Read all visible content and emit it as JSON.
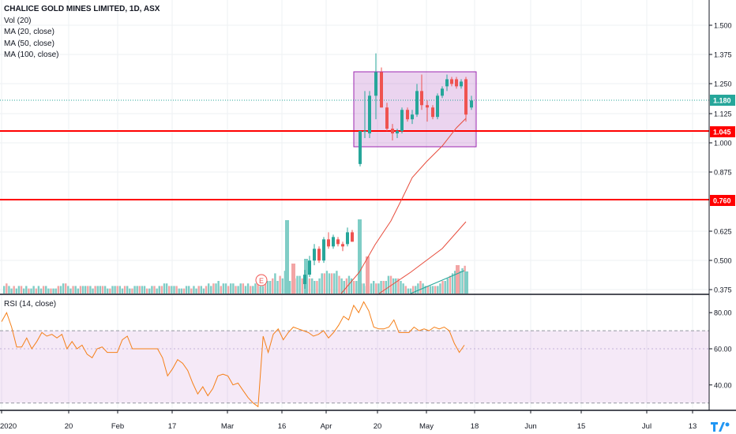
{
  "legend": {
    "title": "CHALICE GOLD MINES LIMITED, 1D, ASX",
    "lines": [
      "Vol (20)",
      "MA (20, close)",
      "MA (50, close)",
      "MA (100, close)"
    ]
  },
  "rsi": {
    "label": "RSI (14, close)",
    "ticks": [
      "80.00",
      "60.00",
      "40.00"
    ],
    "band": [
      30,
      70
    ],
    "values": [
      75,
      80,
      72,
      61,
      61,
      66,
      60,
      64,
      69,
      67,
      68,
      66,
      68,
      60,
      64,
      60,
      62,
      57,
      55,
      60,
      61,
      58,
      58,
      58,
      65,
      67,
      60,
      60,
      60,
      60,
      60,
      60,
      55,
      45,
      49,
      54,
      52,
      48,
      41,
      35,
      39,
      34,
      38,
      45,
      46,
      45,
      40,
      41,
      37,
      33,
      30,
      28,
      67,
      58,
      68,
      71,
      65,
      69,
      72,
      71,
      70,
      69,
      67,
      68,
      70,
      66,
      69,
      73,
      78,
      76,
      84,
      80,
      86,
      81,
      72,
      71,
      71,
      72,
      76,
      69,
      69,
      69,
      72,
      70,
      71,
      70,
      72,
      71,
      72,
      70,
      63,
      58,
      62
    ],
    "line_color": "#f57f17",
    "band_color": "#9c27b0"
  },
  "price_axis": {
    "ticks": [
      "1.500",
      "1.375",
      "1.250",
      "1.125",
      "1.000",
      "0.875",
      "0.625",
      "0.500",
      "0.375"
    ],
    "current_price": {
      "label": "1.180",
      "color": "#26a69a"
    },
    "levels": [
      {
        "label": "1.045",
        "color": "#ff0000"
      },
      {
        "label": "0.760",
        "color": "#ff0000"
      }
    ]
  },
  "time_axis": {
    "ticks": [
      "2020",
      "20",
      "Feb",
      "17",
      "Mar",
      "16",
      "Apr",
      "20",
      "May",
      "18",
      "Jun",
      "15",
      "Jul",
      "13"
    ]
  },
  "chart_data": {
    "type": "candlestick",
    "ylim": [
      0.375,
      1.55
    ],
    "series": [
      {
        "name": "price",
        "type": "candlestick",
        "candles": [
          {
            "o": 0.4,
            "h": 0.46,
            "l": 0.38,
            "c": 0.44
          },
          {
            "o": 0.44,
            "h": 0.52,
            "l": 0.43,
            "c": 0.5
          },
          {
            "o": 0.5,
            "h": 0.57,
            "l": 0.48,
            "c": 0.55
          },
          {
            "o": 0.55,
            "h": 0.56,
            "l": 0.49,
            "c": 0.5
          },
          {
            "o": 0.5,
            "h": 0.6,
            "l": 0.49,
            "c": 0.59
          },
          {
            "o": 0.59,
            "h": 0.62,
            "l": 0.55,
            "c": 0.56
          },
          {
            "o": 0.56,
            "h": 0.61,
            "l": 0.55,
            "c": 0.6
          },
          {
            "o": 0.59,
            "h": 0.6,
            "l": 0.56,
            "c": 0.57
          },
          {
            "o": 0.57,
            "h": 0.58,
            "l": 0.54,
            "c": 0.56
          },
          {
            "o": 0.57,
            "h": 0.64,
            "l": 0.56,
            "c": 0.62
          },
          {
            "o": 0.62,
            "h": 0.63,
            "l": 0.58,
            "c": 0.58
          },
          {
            "o": 0.91,
            "h": 1.05,
            "l": 0.9,
            "c": 1.05
          },
          {
            "o": 1.05,
            "h": 1.22,
            "l": 1.02,
            "c": 1.05
          },
          {
            "o": 1.04,
            "h": 1.22,
            "l": 1.02,
            "c": 1.2
          },
          {
            "o": 1.2,
            "h": 1.38,
            "l": 1.1,
            "c": 1.3
          },
          {
            "o": 1.3,
            "h": 1.32,
            "l": 1.15,
            "c": 1.15
          },
          {
            "o": 1.15,
            "h": 1.17,
            "l": 1.05,
            "c": 1.06
          },
          {
            "o": 1.06,
            "h": 1.08,
            "l": 1.01,
            "c": 1.04
          },
          {
            "o": 1.04,
            "h": 1.06,
            "l": 1.02,
            "c": 1.05
          },
          {
            "o": 1.05,
            "h": 1.15,
            "l": 1.04,
            "c": 1.14
          },
          {
            "o": 1.14,
            "h": 1.15,
            "l": 1.09,
            "c": 1.1
          },
          {
            "o": 1.1,
            "h": 1.14,
            "l": 1.08,
            "c": 1.12
          },
          {
            "o": 1.12,
            "h": 1.25,
            "l": 1.11,
            "c": 1.22
          },
          {
            "o": 1.22,
            "h": 1.29,
            "l": 1.14,
            "c": 1.16
          },
          {
            "o": 1.16,
            "h": 1.18,
            "l": 1.09,
            "c": 1.15
          },
          {
            "o": 1.15,
            "h": 1.16,
            "l": 1.1,
            "c": 1.11
          },
          {
            "o": 1.11,
            "h": 1.21,
            "l": 1.1,
            "c": 1.2
          },
          {
            "o": 1.2,
            "h": 1.24,
            "l": 1.19,
            "c": 1.23
          },
          {
            "o": 1.24,
            "h": 1.29,
            "l": 1.22,
            "c": 1.27
          },
          {
            "o": 1.27,
            "h": 1.28,
            "l": 1.24,
            "c": 1.25
          },
          {
            "o": 1.27,
            "h": 1.28,
            "l": 1.23,
            "c": 1.24
          },
          {
            "o": 1.24,
            "h": 1.27,
            "l": 1.23,
            "c": 1.26
          },
          {
            "o": 1.27,
            "h": 1.28,
            "l": 1.09,
            "c": 1.12
          },
          {
            "o": 1.15,
            "h": 1.2,
            "l": 1.14,
            "c": 1.18
          }
        ]
      },
      {
        "name": "MA (20, close)",
        "type": "line",
        "color": "#e74c3c"
      },
      {
        "name": "MA (50, close)",
        "type": "line",
        "color": "#e74c3c"
      },
      {
        "name": "MA (100, close)",
        "type": "line",
        "color": "#26a69a"
      },
      {
        "name": "Vol (20)",
        "type": "bar"
      }
    ],
    "volume": [
      3,
      4,
      3,
      2,
      3,
      2,
      3,
      3,
      2,
      3,
      2,
      2,
      3,
      2,
      3,
      2,
      3,
      3,
      2,
      2,
      2,
      2,
      3,
      3,
      4,
      4,
      3,
      2,
      3,
      3,
      2,
      3,
      3,
      3,
      3,
      3,
      2,
      3,
      3,
      3,
      3,
      3,
      2,
      2,
      3,
      3,
      3,
      3,
      2,
      3,
      3,
      2,
      2,
      3,
      3,
      3,
      3,
      3,
      2,
      2,
      3,
      3,
      2,
      3,
      3,
      4,
      4,
      3,
      3,
      3,
      3,
      2,
      2,
      2,
      3,
      3,
      2,
      3,
      2,
      3,
      3,
      2,
      3,
      4,
      3,
      4,
      4,
      5,
      3,
      4,
      4,
      3,
      4,
      4,
      3,
      3,
      4,
      4,
      3,
      4,
      3,
      3,
      4,
      4,
      3,
      3,
      4,
      5,
      5,
      6,
      8,
      5,
      7,
      6,
      9,
      8,
      5,
      5,
      6,
      7,
      7,
      6,
      7,
      6,
      6,
      6,
      5,
      5,
      6,
      8,
      8,
      9,
      8,
      8,
      8,
      9,
      7,
      6,
      5,
      6,
      7,
      6,
      5,
      5,
      5,
      4,
      4,
      3,
      3,
      4,
      5,
      4,
      4,
      5,
      5,
      5,
      7,
      7,
      6,
      6,
      6,
      5,
      4,
      3,
      2,
      2,
      3,
      3,
      4,
      5,
      4,
      3,
      3,
      3,
      3,
      3,
      3,
      4,
      5,
      5,
      6,
      7,
      8,
      9,
      10,
      9,
      10,
      11
    ],
    "colors": {
      "up": "#26a69a",
      "down": "#ef5350",
      "vol_up": "#7fcdc6",
      "vol_down": "#f3a5a5",
      "rectangle": "#9c27b0"
    },
    "annotation": "E"
  }
}
